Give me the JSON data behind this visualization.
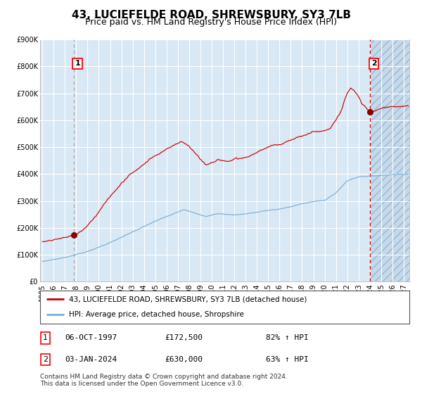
{
  "title": "43, LUCIEFELDE ROAD, SHREWSBURY, SY3 7LB",
  "subtitle": "Price paid vs. HM Land Registry's House Price Index (HPI)",
  "ylim": [
    0,
    900000
  ],
  "yticks": [
    0,
    100000,
    200000,
    300000,
    400000,
    500000,
    600000,
    700000,
    800000,
    900000
  ],
  "ytick_labels": [
    "£0",
    "£100K",
    "£200K",
    "£300K",
    "£400K",
    "£500K",
    "£600K",
    "£700K",
    "£800K",
    "£900K"
  ],
  "xlim_start": 1994.8,
  "xlim_end": 2027.5,
  "xticks": [
    1995,
    1996,
    1997,
    1998,
    1999,
    2000,
    2001,
    2002,
    2003,
    2004,
    2005,
    2006,
    2007,
    2008,
    2009,
    2010,
    2011,
    2012,
    2013,
    2014,
    2015,
    2016,
    2017,
    2018,
    2019,
    2020,
    2021,
    2022,
    2023,
    2024,
    2025,
    2026,
    2027
  ],
  "bg_color": "#d9e8f5",
  "grid_color": "#ffffff",
  "red_line_color": "#cc0000",
  "blue_line_color": "#7ab0d4",
  "dot_color": "#880000",
  "vline1_color": "#aaaaaa",
  "vline2_color": "#cc0000",
  "hatch_start": 2024.01,
  "sale1_x": 1997.76,
  "sale1_y": 172500,
  "sale2_x": 2024.01,
  "sale2_y": 630000,
  "legend_line1": "43, LUCIEFELDE ROAD, SHREWSBURY, SY3 7LB (detached house)",
  "legend_line2": "HPI: Average price, detached house, Shropshire",
  "table_row1": [
    "1",
    "06-OCT-1997",
    "£172,500",
    "82% ↑ HPI"
  ],
  "table_row2": [
    "2",
    "03-JAN-2024",
    "£630,000",
    "63% ↑ HPI"
  ],
  "footer": "Contains HM Land Registry data © Crown copyright and database right 2024.\nThis data is licensed under the Open Government Licence v3.0.",
  "title_fontsize": 11,
  "subtitle_fontsize": 9,
  "tick_fontsize": 7,
  "legend_fontsize": 7.5,
  "table_fontsize": 8,
  "footer_fontsize": 6.5
}
